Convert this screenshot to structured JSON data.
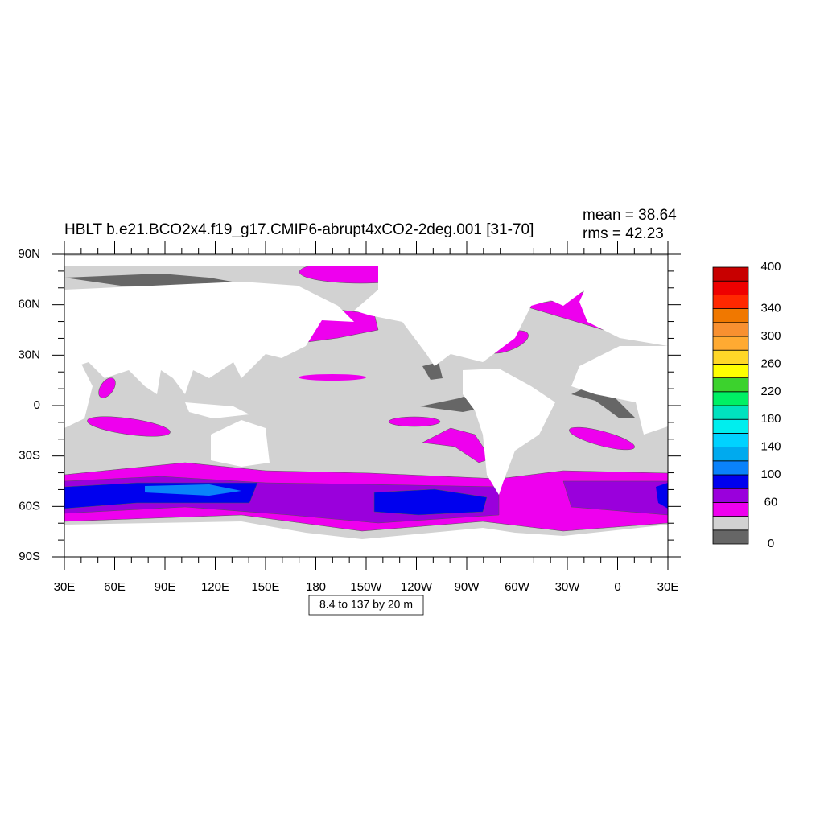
{
  "title": "HBLT b.e21.BCO2x4.f19_g17.CMIP6-abrupt4xCO2-2deg.001 [31-70]",
  "stats": {
    "mean": "mean = 38.64",
    "rms": "rms = 42.23"
  },
  "map": {
    "lat_ticks": [
      {
        "value": 90,
        "label": "90N"
      },
      {
        "value": 60,
        "label": "60N"
      },
      {
        "value": 30,
        "label": "30N"
      },
      0,
      {
        "value": -30,
        "label": "30S"
      },
      {
        "value": -60,
        "label": "60S"
      },
      {
        "value": -90,
        "label": "90S"
      }
    ],
    "lon_ticks": [
      {
        "value": 30,
        "label": "30E"
      },
      {
        "value": 60,
        "label": "60E"
      },
      {
        "value": 90,
        "label": "90E"
      },
      {
        "value": 120,
        "label": "120E"
      },
      {
        "value": 150,
        "label": "150E"
      },
      180,
      {
        "value": 210,
        "label": "150W"
      },
      {
        "value": 240,
        "label": "120W"
      },
      {
        "value": 270,
        "label": "90W"
      },
      {
        "value": 300,
        "label": "60W"
      },
      {
        "value": 330,
        "label": "30W"
      },
      {
        "value": 360,
        "label": "0"
      },
      {
        "value": 390,
        "label": "30E"
      }
    ]
  },
  "colorbar": {
    "levels": [
      0,
      20,
      40,
      60,
      80,
      100,
      120,
      140,
      160,
      180,
      200,
      220,
      240,
      260,
      280,
      300,
      320,
      340,
      360,
      380,
      400
    ],
    "colors": [
      "#666666",
      "#d2d2d2",
      "#ee00ee",
      "#9a00dc",
      "#0000ee",
      "#0a82fa",
      "#00aaee",
      "#00d2ff",
      "#00eeee",
      "#00e2bf",
      "#00f064",
      "#3cd22d",
      "#ffff00",
      "#ffd728",
      "#ffaa32",
      "#f89030",
      "#f07800",
      "#ff2800",
      "#ee0000",
      "#c80000"
    ],
    "labels": [
      0,
      60,
      100,
      140,
      180,
      220,
      260,
      300,
      340,
      400
    ]
  },
  "footnote": "8.4 to 137 by 20 m"
}
